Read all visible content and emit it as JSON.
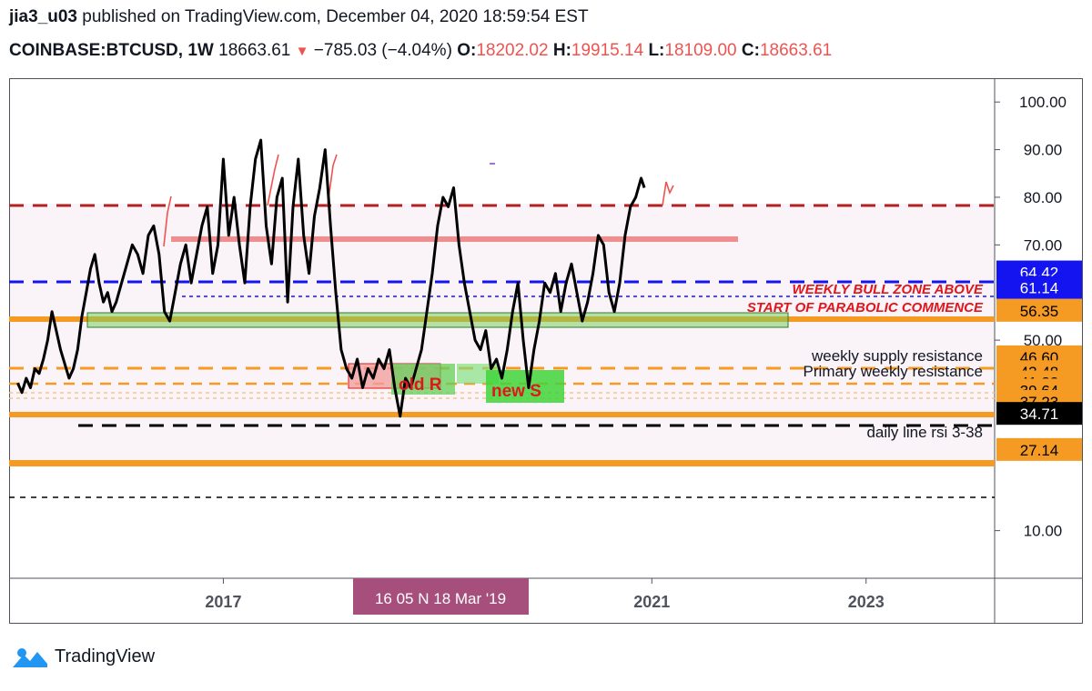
{
  "header": {
    "author": "jia3_u03",
    "published_text": "published on TradingView.com, December 04, 2020 18:59:54 EST",
    "symbol": "COINBASE:BTCUSD, 1W",
    "last": "18663.61",
    "down_arrow": "▼",
    "change": "−785.03 (−4.04%)",
    "o_label": "O:",
    "o": "18202.02",
    "h_label": "H:",
    "h": "19915.14",
    "l_label": "L:",
    "l": "18109.00",
    "c_label": "C:",
    "c": "18663.61"
  },
  "footer": {
    "brand": "TradingView",
    "logo_icon": "tradingview-cloud-logo-icon"
  },
  "chart_data": {
    "type": "line",
    "indicator": "RSI",
    "y_ticks": [
      "100.00",
      "90.00",
      "80.00",
      "70.00",
      "50.00",
      "10.00"
    ],
    "ylim": [
      0,
      105
    ],
    "x_ticks": [
      {
        "label": "2017",
        "t": 2017.0
      },
      {
        "label": "2021",
        "t": 2021.0
      },
      {
        "label": "2023",
        "t": 2023.0
      }
    ],
    "xlim": [
      2015.0,
      2024.2
    ],
    "x_cursor_label": "16  05 N  18 Mar '19",
    "price_labels": [
      {
        "text": "64.42",
        "value": 64.42,
        "bg": "#1414f0",
        "fg": "#ffffff"
      },
      {
        "text": "61.14",
        "value": 61.14,
        "bg": "#1414f0",
        "fg": "#ffffff"
      },
      {
        "text": "56.35",
        "value": 56.35,
        "bg": "#f59a23",
        "fg": "#000000"
      },
      {
        "text": "46.60",
        "value": 46.6,
        "bg": "#f59a23",
        "fg": "#000000"
      },
      {
        "text": "43.48",
        "value": 43.48,
        "bg": "#f59a23",
        "fg": "#000000"
      },
      {
        "text": "41.32",
        "value": 41.32,
        "bg": "#f59a23",
        "fg": "#000000"
      },
      {
        "text": "39.64",
        "value": 39.64,
        "bg": "#f59a23",
        "fg": "#000000"
      },
      {
        "text": "37.23",
        "value": 37.23,
        "bg": "#f59a23",
        "fg": "#000000"
      },
      {
        "text": "34.71",
        "value": 34.71,
        "bg": "#000000",
        "fg": "#ffffff"
      },
      {
        "text": "27.14",
        "value": 27.14,
        "bg": "#f59a23",
        "fg": "#000000"
      }
    ],
    "annotations": [
      {
        "text": "WEEKLY BULL ZONE ABOVE",
        "color": "#e0161b",
        "italic": true
      },
      {
        "text": "START OF PARABOLIC COMMENCE",
        "color": "#e0161b",
        "italic": true
      },
      {
        "text": "weekly supply resistance",
        "color": "#131722",
        "italic": false
      },
      {
        "text": "Primary weekly resistance",
        "color": "#131722",
        "italic": false
      },
      {
        "text": "daily line rsi 3-38",
        "color": "#131722",
        "italic": false
      },
      {
        "text": "old R",
        "color": "#e0161b",
        "italic": false
      },
      {
        "text": "new S",
        "color": "#e0161b",
        "italic": false
      }
    ],
    "series": [
      {
        "color": "#000000",
        "x": [
          2015.08,
          2015.12,
          2015.16,
          2015.2,
          2015.24,
          2015.28,
          2015.32,
          2015.36,
          2015.4,
          2015.44,
          2015.48,
          2015.52,
          2015.56,
          2015.6,
          2015.64,
          2015.68,
          2015.72,
          2015.76,
          2015.8,
          2015.84,
          2015.88,
          2015.92,
          2015.96,
          2016.0,
          2016.05,
          2016.1,
          2016.15,
          2016.2,
          2016.25,
          2016.3,
          2016.35,
          2016.4,
          2016.45,
          2016.5,
          2016.55,
          2016.6,
          2016.65,
          2016.7,
          2016.75,
          2016.8,
          2016.85,
          2016.9,
          2016.95,
          2017.0,
          2017.05,
          2017.1,
          2017.15,
          2017.2,
          2017.25,
          2017.3,
          2017.35,
          2017.4,
          2017.45,
          2017.5,
          2017.55,
          2017.6,
          2017.65,
          2017.7,
          2017.75,
          2017.8,
          2017.85,
          2017.9,
          2017.95,
          2018.0,
          2018.05,
          2018.1,
          2018.15,
          2018.2,
          2018.25,
          2018.3,
          2018.35,
          2018.4,
          2018.45,
          2018.5,
          2018.55,
          2018.6,
          2018.65,
          2018.7,
          2018.75,
          2018.8,
          2018.85,
          2018.9,
          2018.95,
          2019.0,
          2019.05,
          2019.1,
          2019.15,
          2019.2,
          2019.25,
          2019.3,
          2019.35,
          2019.4,
          2019.45,
          2019.5,
          2019.55,
          2019.6,
          2019.65,
          2019.7,
          2019.75,
          2019.8,
          2019.85,
          2019.9,
          2019.95,
          2020.0,
          2020.05,
          2020.1,
          2020.15,
          2020.2,
          2020.25,
          2020.3,
          2020.35,
          2020.4,
          2020.45,
          2020.5,
          2020.55,
          2020.6,
          2020.65,
          2020.7,
          2020.75,
          2020.8,
          2020.85,
          2020.9,
          2020.93
        ],
        "y": [
          41,
          39,
          42,
          40,
          44,
          43,
          46,
          50,
          56,
          52,
          48,
          45,
          42,
          44,
          48,
          55,
          60,
          65,
          68,
          62,
          58,
          60,
          56,
          58,
          62,
          66,
          70,
          68,
          64,
          72,
          74,
          68,
          56,
          54,
          60,
          66,
          70,
          62,
          68,
          74,
          78,
          64,
          70,
          88,
          72,
          80,
          70,
          62,
          78,
          88,
          92,
          74,
          66,
          80,
          84,
          58,
          78,
          88,
          72,
          64,
          76,
          82,
          90,
          74,
          60,
          48,
          44,
          42,
          46,
          40,
          44,
          42,
          46,
          44,
          48,
          40,
          34,
          42,
          40,
          44,
          48,
          56,
          64,
          74,
          80,
          78,
          82,
          70,
          62,
          56,
          50,
          48,
          52,
          44,
          46,
          42,
          48,
          56,
          62,
          50,
          40,
          48,
          54,
          62,
          60,
          64,
          56,
          62,
          66,
          60,
          54,
          58,
          64,
          72,
          70,
          60,
          56,
          62,
          72,
          78,
          80,
          84,
          82
        ]
      }
    ]
  }
}
